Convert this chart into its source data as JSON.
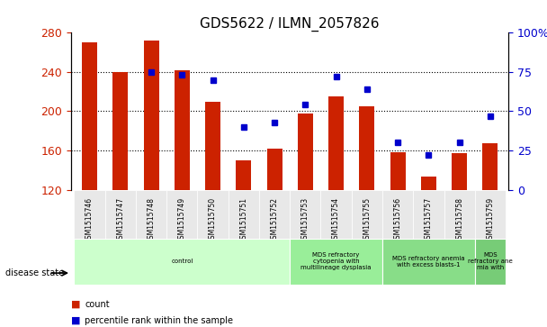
{
  "title": "GDS5622 / ILMN_2057826",
  "samples": [
    "GSM1515746",
    "GSM1515747",
    "GSM1515748",
    "GSM1515749",
    "GSM1515750",
    "GSM1515751",
    "GSM1515752",
    "GSM1515753",
    "GSM1515754",
    "GSM1515755",
    "GSM1515756",
    "GSM1515757",
    "GSM1515758",
    "GSM1515759"
  ],
  "counts": [
    270,
    240,
    272,
    242,
    210,
    150,
    162,
    198,
    215,
    205,
    158,
    133,
    157,
    167
  ],
  "percentiles": [
    null,
    null,
    75,
    73,
    70,
    40,
    43,
    54,
    72,
    64,
    30,
    22,
    30,
    47
  ],
  "ymin": 120,
  "ymax": 280,
  "yticks": [
    120,
    160,
    200,
    240,
    280
  ],
  "right_yticks": [
    0,
    25,
    50,
    75,
    100
  ],
  "bar_color": "#cc2200",
  "dot_color": "#0000cc",
  "disease_groups": [
    {
      "label": "control",
      "start": 0,
      "end": 7,
      "color": "#ccffcc"
    },
    {
      "label": "MDS refractory\ncytopenia with\nmultilineage dysplasia",
      "start": 7,
      "end": 10,
      "color": "#99ee99"
    },
    {
      "label": "MDS refractory anemia\nwith excess blasts-1",
      "start": 10,
      "end": 13,
      "color": "#88dd88"
    },
    {
      "label": "MDS\nrefractory ane\nmia with",
      "start": 13,
      "end": 14,
      "color": "#77cc77"
    }
  ],
  "bar_width": 0.5,
  "grid_color": "#000000",
  "bg_color": "#e8e8e8"
}
